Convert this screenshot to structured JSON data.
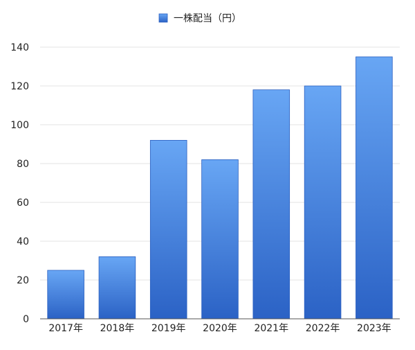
{
  "chart_data": {
    "type": "bar",
    "categories": [
      "2017年",
      "2018年",
      "2019年",
      "2020年",
      "2021年",
      "2022年",
      "2023年"
    ],
    "series": [
      {
        "name": "一株配当（円）",
        "values": [
          25,
          32,
          92,
          82,
          118,
          120,
          135
        ]
      }
    ],
    "ylim": [
      0,
      140
    ],
    "yticks": [
      0,
      20,
      40,
      60,
      80,
      100,
      120,
      140
    ],
    "grid": true,
    "legend_position": "top-center",
    "colors": {
      "bar_top": "#68a6f4",
      "bar_bottom": "#2b62c5",
      "bar_edge": "#2a5fc0",
      "grid": "#e3e3e3",
      "axis": "#555555"
    }
  }
}
